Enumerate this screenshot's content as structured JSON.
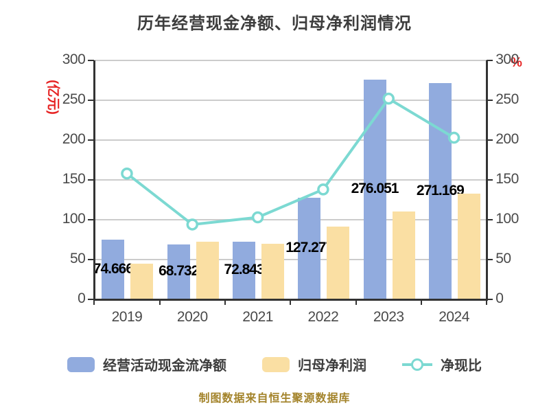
{
  "title": "历年经营现金净额、归母净利润情况",
  "footer": "制图数据来自恒生聚源数据库",
  "left_axis": {
    "unit_label": "(亿元)",
    "ticks": [
      300,
      250,
      200,
      150,
      100,
      50,
      0
    ],
    "range": [
      0,
      300
    ]
  },
  "right_axis": {
    "unit_label": "%",
    "ticks": [
      300,
      250,
      200,
      150,
      100,
      50,
      0
    ],
    "range": [
      0,
      300
    ]
  },
  "chart_data": {
    "type": "bar+line",
    "title": "历年经营现金净额、归母净利润情况",
    "categories": [
      "2019",
      "2020",
      "2021",
      "2022",
      "2023",
      "2024"
    ],
    "series": [
      {
        "name": "经营活动现金流净额",
        "type": "bar",
        "axis": "left",
        "color": "#91abde",
        "values": [
          74.666,
          68.732,
          72.843,
          127.277,
          276.051,
          271.169
        ],
        "labels": [
          "74.666",
          "68.732",
          "72.843",
          "127.277",
          "276.051",
          "271.169"
        ]
      },
      {
        "name": "归母净利润",
        "type": "bar",
        "axis": "left",
        "color": "#fadfa3",
        "values": [
          45,
          72,
          70,
          91,
          110,
          133
        ]
      },
      {
        "name": "净现比",
        "type": "line",
        "axis": "right",
        "color": "#7cd9d2",
        "marker": "circle",
        "values": [
          158,
          94,
          103,
          138,
          252,
          203
        ]
      }
    ],
    "ylim_left": [
      0,
      300
    ],
    "ylim_right": [
      0,
      300
    ],
    "grid": true,
    "legend_position": "bottom"
  },
  "legend": {
    "items": [
      {
        "label": "经营活动现金流净额",
        "swatch": "bar",
        "color": "#91abde"
      },
      {
        "label": "归母净利润",
        "swatch": "bar",
        "color": "#fadfa3"
      },
      {
        "label": "净现比",
        "swatch": "line",
        "color": "#7cd9d2"
      }
    ]
  },
  "colors": {
    "title_text": "#3d3d3d",
    "axis_text": "#4a4a4a",
    "unit_text": "#e62222",
    "gridline": "#cccccc",
    "axis_line": "#333333",
    "bar_label_text": "#000000",
    "footer_text": "#a3832a"
  }
}
